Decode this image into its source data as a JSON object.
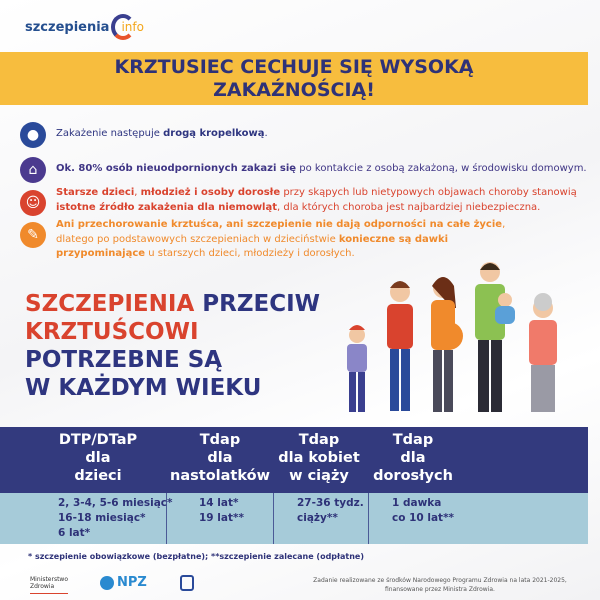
{
  "logo": {
    "text1": "szczepienia",
    "text2": "info"
  },
  "banner": {
    "line1": "KRZTUSIEC CECHUJE SIĘ WYSOKĄ",
    "line2": "ZAKAŹNOŚCIĄ!"
  },
  "bullets": [
    {
      "icon": "droplet-icon",
      "color": "#2a4a9a",
      "parts": [
        {
          "t": "Zakażenie następuje ",
          "b": false
        },
        {
          "t": "drogą kropelkową",
          "b": true
        },
        {
          "t": ".",
          "b": false
        }
      ],
      "text_color": "#2e3580"
    },
    {
      "icon": "house-icon",
      "color": "#4b3a8f",
      "parts": [
        {
          "t": "Ok. 80% osób nieuodpornionych zakazi się",
          "b": true
        },
        {
          "t": " po kontakcie z osobą zakażoną, w środowisku domowym.",
          "b": false
        }
      ],
      "text_color": "#3f3585"
    },
    {
      "icon": "baby-icon",
      "color": "#d9432e",
      "parts": [
        {
          "t": "Starsze dzieci",
          "b": true
        },
        {
          "t": ", ",
          "b": false
        },
        {
          "t": "młodzież i osoby dorosłe",
          "b": true
        },
        {
          "t": " przy skąpych lub nietypowych objawach choroby stanowią ",
          "b": false
        },
        {
          "t": "istotne źródło zakażenia dla niemowląt",
          "b": true
        },
        {
          "t": ", dla których choroba jest najbardziej niebezpieczna.",
          "b": false
        }
      ],
      "text_color": "#d9432e"
    },
    {
      "icon": "syringe-icon",
      "color": "#f08a2c",
      "parts": [
        {
          "t": "Ani przechorowanie krztuśca, ani szczepienie nie dają odporności na całe życie",
          "b": true
        },
        {
          "t": ", dlatego po podstawowych szczepieniach w dzieciństwie ",
          "b": false
        },
        {
          "t": "konieczne są dawki przypominające",
          "b": true
        },
        {
          "t": " u starszych dzieci, młodzieży i dorosłych.",
          "b": false
        }
      ],
      "text_color": "#f08a2c"
    }
  ],
  "headline": {
    "w1": "SZCZEPIENIA",
    "w2": " PRZECIW",
    "w3": "KRZTUŚCOWI",
    "w4": "POTRZEBNE SĄ",
    "w5": "W KAŻDYM WIEKU"
  },
  "table": {
    "headers": [
      [
        "DTP/DTaP",
        "dla",
        "dzieci"
      ],
      [
        "Tdap",
        "dla",
        "nastolatków"
      ],
      [
        "Tdap",
        "dla kobiet",
        "w ciąży"
      ],
      [
        "Tdap",
        "dla",
        "dorosłych"
      ]
    ],
    "cells": [
      [
        "2, 3-4, 5-6 miesiąc*",
        "16-18 miesiąc*",
        "6 lat*"
      ],
      [
        "14 lat*",
        "19 lat**"
      ],
      [
        "27-36 tydz.",
        "ciąży**"
      ],
      [
        "1 dawka",
        "co 10 lat**"
      ]
    ]
  },
  "footnote": "* szczepienie obowiązkowe (bezpłatne); **szczepienie zalecane (odpłatne)",
  "logos": {
    "ministry": "Ministerstwo Zdrowia",
    "npz": "NPZ"
  },
  "funding": "Zadanie realizowane ze środków Narodowego Programu Zdrowia na lata 2021-2025, finansowane przez Ministra Zdrowia.",
  "colors": {
    "banner": "#f7bd3e",
    "navy": "#333a7e",
    "table_body": "#a6cbd9",
    "red": "#d9432e"
  }
}
